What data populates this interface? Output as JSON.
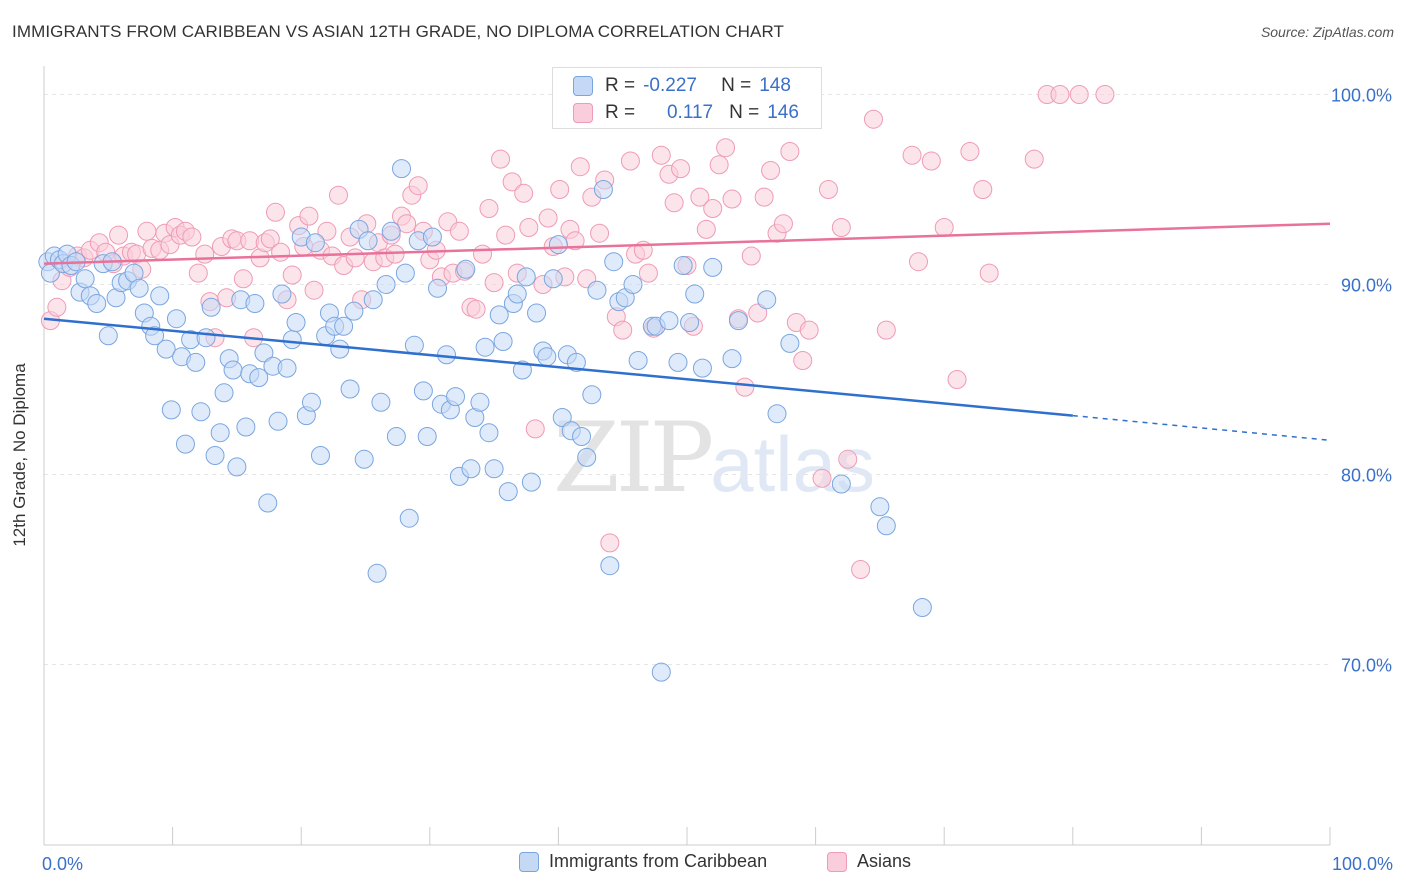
{
  "header": {
    "title": "IMMIGRANTS FROM CARIBBEAN VS ASIAN 12TH GRADE, NO DIPLOMA CORRELATION CHART",
    "source": "Source: ZipAtlas.com"
  },
  "watermark": {
    "zip": "ZIP",
    "atlas": "atlas"
  },
  "stats": {
    "caribbean": {
      "r_label": "R =",
      "r_value": "-0.227",
      "n_label": "N =",
      "n_value": "148"
    },
    "asians": {
      "r_label": "R =",
      "r_value": "0.117",
      "n_label": "N =",
      "n_value": "146"
    }
  },
  "chart_data": {
    "type": "scatter",
    "title": "IMMIGRANTS FROM CARIBBEAN VS ASIAN 12TH GRADE, NO DIPLOMA CORRELATION CHART",
    "xlabel": "",
    "ylabel": "12th Grade, No Diploma",
    "xlim": [
      0,
      100
    ],
    "ylim": [
      60.5,
      101.5
    ],
    "x_ticks": [
      0,
      100
    ],
    "x_tick_labels": [
      "0.0%",
      "100.0%"
    ],
    "y_ticks": [
      70,
      80,
      90,
      100
    ],
    "y_tick_labels": [
      "70.0%",
      "80.0%",
      "90.0%",
      "100.0%"
    ],
    "grid": true,
    "legend_position": "bottom-center",
    "colors": {
      "caribbean_fill": "#c5d9f5",
      "caribbean_stroke": "#7aa6e0",
      "caribbean_line": "#2f6fce",
      "asians_fill": "#f9cddb",
      "asians_stroke": "#ef9bb6",
      "asians_line": "#e8729a",
      "axis_text": "#3a70c8"
    },
    "series": [
      {
        "name": "Immigrants from Caribbean",
        "trend": {
          "x_start": 0,
          "y_start": 88.2,
          "x_end": 80,
          "y_end": 83.1,
          "x_dash_end": 100,
          "y_dash_end": 81.8
        },
        "points": [
          [
            0.3,
            91.2
          ],
          [
            0.5,
            90.6
          ],
          [
            0.8,
            91.5
          ],
          [
            1.2,
            91.3
          ],
          [
            1.5,
            91.1
          ],
          [
            1.8,
            91.6
          ],
          [
            2.1,
            91.0
          ],
          [
            2.5,
            91.2
          ],
          [
            2.8,
            89.6
          ],
          [
            3.2,
            90.3
          ],
          [
            3.6,
            89.4
          ],
          [
            4.1,
            89.0
          ],
          [
            4.6,
            91.1
          ],
          [
            5.0,
            87.3
          ],
          [
            5.3,
            91.2
          ],
          [
            5.6,
            89.3
          ],
          [
            6.0,
            90.1
          ],
          [
            6.5,
            90.2
          ],
          [
            7.0,
            90.6
          ],
          [
            7.4,
            89.8
          ],
          [
            7.8,
            88.5
          ],
          [
            8.3,
            87.8
          ],
          [
            8.6,
            87.3
          ],
          [
            9.0,
            89.4
          ],
          [
            9.5,
            86.6
          ],
          [
            9.9,
            83.4
          ],
          [
            10.3,
            88.2
          ],
          [
            10.7,
            86.2
          ],
          [
            11.0,
            81.6
          ],
          [
            11.4,
            87.1
          ],
          [
            11.8,
            85.9
          ],
          [
            12.2,
            83.3
          ],
          [
            12.6,
            87.2
          ],
          [
            13.0,
            88.8
          ],
          [
            13.3,
            81.0
          ],
          [
            13.7,
            82.2
          ],
          [
            14.0,
            84.3
          ],
          [
            14.4,
            86.1
          ],
          [
            14.7,
            85.5
          ],
          [
            15.0,
            80.4
          ],
          [
            15.3,
            89.2
          ],
          [
            15.7,
            82.5
          ],
          [
            16.0,
            85.3
          ],
          [
            16.4,
            89.0
          ],
          [
            16.7,
            85.1
          ],
          [
            17.1,
            86.4
          ],
          [
            17.4,
            78.5
          ],
          [
            17.8,
            85.7
          ],
          [
            18.2,
            82.8
          ],
          [
            18.5,
            89.5
          ],
          [
            18.9,
            85.6
          ],
          [
            19.3,
            87.1
          ],
          [
            19.6,
            88.0
          ],
          [
            20.0,
            92.5
          ],
          [
            20.4,
            83.1
          ],
          [
            20.8,
            83.8
          ],
          [
            21.1,
            92.2
          ],
          [
            21.5,
            81.0
          ],
          [
            21.9,
            87.3
          ],
          [
            22.2,
            88.5
          ],
          [
            22.6,
            87.8
          ],
          [
            23.0,
            86.6
          ],
          [
            23.3,
            87.8
          ],
          [
            23.8,
            84.5
          ],
          [
            24.1,
            88.6
          ],
          [
            24.5,
            92.9
          ],
          [
            24.9,
            80.8
          ],
          [
            25.2,
            92.3
          ],
          [
            25.6,
            89.2
          ],
          [
            25.9,
            74.8
          ],
          [
            26.2,
            83.8
          ],
          [
            26.6,
            90.0
          ],
          [
            27.0,
            92.8
          ],
          [
            27.4,
            82.0
          ],
          [
            27.8,
            96.1
          ],
          [
            28.1,
            90.6
          ],
          [
            28.4,
            77.7
          ],
          [
            28.8,
            86.8
          ],
          [
            29.1,
            92.3
          ],
          [
            29.5,
            84.4
          ],
          [
            29.8,
            82.0
          ],
          [
            30.2,
            92.5
          ],
          [
            30.6,
            89.8
          ],
          [
            30.9,
            83.7
          ],
          [
            31.3,
            86.3
          ],
          [
            31.6,
            83.4
          ],
          [
            32.0,
            84.1
          ],
          [
            32.3,
            79.9
          ],
          [
            32.8,
            90.8
          ],
          [
            33.2,
            80.3
          ],
          [
            33.5,
            83.0
          ],
          [
            33.9,
            83.8
          ],
          [
            34.3,
            86.7
          ],
          [
            34.6,
            82.2
          ],
          [
            35.0,
            80.3
          ],
          [
            35.4,
            88.4
          ],
          [
            35.7,
            87.0
          ],
          [
            36.1,
            79.1
          ],
          [
            36.5,
            89.0
          ],
          [
            36.8,
            89.5
          ],
          [
            37.2,
            85.5
          ],
          [
            37.5,
            90.4
          ],
          [
            37.9,
            79.6
          ],
          [
            38.3,
            88.5
          ],
          [
            38.8,
            86.5
          ],
          [
            39.1,
            86.2
          ],
          [
            39.6,
            90.3
          ],
          [
            40.0,
            92.1
          ],
          [
            40.3,
            83.0
          ],
          [
            40.7,
            86.3
          ],
          [
            41.0,
            82.3
          ],
          [
            41.4,
            85.9
          ],
          [
            41.8,
            82.0
          ],
          [
            42.2,
            80.9
          ],
          [
            42.6,
            84.2
          ],
          [
            43.0,
            89.7
          ],
          [
            43.5,
            95.0
          ],
          [
            44.0,
            75.2
          ],
          [
            44.3,
            91.2
          ],
          [
            44.7,
            89.1
          ],
          [
            45.2,
            89.3
          ],
          [
            45.8,
            90.0
          ],
          [
            46.2,
            86.0
          ],
          [
            46.8,
            100.0
          ],
          [
            47.3,
            87.8
          ],
          [
            47.6,
            87.8
          ],
          [
            48.0,
            69.6
          ],
          [
            48.6,
            88.1
          ],
          [
            49.3,
            85.9
          ],
          [
            49.7,
            91.0
          ],
          [
            50.2,
            88.0
          ],
          [
            50.6,
            89.5
          ],
          [
            51.2,
            85.6
          ],
          [
            52.0,
            90.9
          ],
          [
            53.0,
            100.0
          ],
          [
            53.5,
            86.1
          ],
          [
            54.0,
            88.1
          ],
          [
            56.2,
            89.2
          ],
          [
            57.0,
            83.2
          ],
          [
            58.0,
            86.9
          ],
          [
            62.0,
            79.5
          ],
          [
            65.0,
            78.3
          ],
          [
            65.5,
            77.3
          ],
          [
            68.3,
            73.0
          ]
        ]
      },
      {
        "name": "Asians",
        "trend": {
          "x_start": 0,
          "y_start": 91.1,
          "x_end": 100,
          "y_end": 93.2
        },
        "points": [
          [
            0.5,
            88.1
          ],
          [
            1.0,
            88.8
          ],
          [
            1.4,
            90.2
          ],
          [
            2.0,
            90.9
          ],
          [
            2.6,
            91.5
          ],
          [
            3.1,
            91.4
          ],
          [
            3.6,
            91.8
          ],
          [
            4.3,
            92.2
          ],
          [
            4.8,
            91.7
          ],
          [
            5.4,
            91.1
          ],
          [
            5.8,
            92.6
          ],
          [
            6.2,
            91.5
          ],
          [
            6.8,
            91.7
          ],
          [
            7.2,
            91.6
          ],
          [
            7.6,
            90.8
          ],
          [
            8.0,
            92.8
          ],
          [
            8.4,
            91.9
          ],
          [
            9.0,
            91.8
          ],
          [
            9.4,
            92.7
          ],
          [
            9.8,
            92.1
          ],
          [
            10.2,
            93.0
          ],
          [
            10.6,
            92.6
          ],
          [
            11.0,
            92.8
          ],
          [
            11.5,
            92.5
          ],
          [
            12.0,
            90.6
          ],
          [
            12.5,
            91.6
          ],
          [
            12.9,
            89.1
          ],
          [
            13.3,
            87.2
          ],
          [
            13.8,
            92.0
          ],
          [
            14.2,
            89.3
          ],
          [
            14.6,
            92.4
          ],
          [
            15.0,
            92.3
          ],
          [
            15.5,
            90.3
          ],
          [
            16.0,
            92.3
          ],
          [
            16.3,
            87.2
          ],
          [
            16.8,
            91.4
          ],
          [
            17.2,
            92.2
          ],
          [
            17.6,
            92.4
          ],
          [
            18.0,
            93.8
          ],
          [
            18.4,
            91.7
          ],
          [
            18.9,
            89.2
          ],
          [
            19.3,
            90.5
          ],
          [
            19.8,
            93.1
          ],
          [
            20.2,
            92.0
          ],
          [
            20.6,
            93.6
          ],
          [
            21.0,
            89.7
          ],
          [
            21.5,
            91.8
          ],
          [
            22.0,
            92.8
          ],
          [
            22.4,
            91.5
          ],
          [
            22.9,
            94.7
          ],
          [
            23.3,
            91.0
          ],
          [
            23.8,
            92.5
          ],
          [
            24.2,
            91.4
          ],
          [
            24.7,
            89.2
          ],
          [
            25.1,
            93.2
          ],
          [
            25.6,
            91.2
          ],
          [
            26.0,
            92.2
          ],
          [
            26.5,
            91.4
          ],
          [
            27.0,
            92.6
          ],
          [
            27.3,
            91.6
          ],
          [
            27.8,
            93.6
          ],
          [
            28.2,
            93.2
          ],
          [
            28.6,
            94.7
          ],
          [
            29.1,
            95.2
          ],
          [
            29.5,
            92.8
          ],
          [
            30.0,
            91.3
          ],
          [
            30.5,
            91.8
          ],
          [
            30.9,
            90.4
          ],
          [
            31.4,
            93.3
          ],
          [
            31.8,
            90.6
          ],
          [
            32.3,
            92.8
          ],
          [
            32.7,
            90.7
          ],
          [
            33.2,
            88.8
          ],
          [
            33.6,
            88.7
          ],
          [
            34.1,
            91.6
          ],
          [
            34.6,
            94.0
          ],
          [
            35.0,
            90.1
          ],
          [
            35.5,
            96.6
          ],
          [
            35.9,
            92.6
          ],
          [
            36.4,
            95.4
          ],
          [
            36.8,
            90.6
          ],
          [
            37.3,
            94.8
          ],
          [
            37.7,
            93.0
          ],
          [
            38.2,
            82.4
          ],
          [
            38.8,
            90.0
          ],
          [
            39.2,
            93.5
          ],
          [
            39.6,
            92.0
          ],
          [
            40.1,
            95.0
          ],
          [
            40.5,
            90.4
          ],
          [
            40.9,
            92.9
          ],
          [
            41.3,
            92.3
          ],
          [
            41.7,
            96.2
          ],
          [
            42.2,
            90.3
          ],
          [
            42.6,
            94.6
          ],
          [
            43.2,
            92.7
          ],
          [
            43.6,
            95.5
          ],
          [
            44.0,
            76.4
          ],
          [
            44.5,
            88.3
          ],
          [
            45.0,
            87.6
          ],
          [
            45.6,
            96.5
          ],
          [
            46.0,
            91.6
          ],
          [
            46.6,
            91.8
          ],
          [
            47.0,
            90.6
          ],
          [
            47.4,
            87.7
          ],
          [
            48.0,
            96.8
          ],
          [
            48.6,
            95.8
          ],
          [
            49.0,
            94.3
          ],
          [
            49.5,
            96.1
          ],
          [
            50.0,
            91.0
          ],
          [
            50.5,
            87.8
          ],
          [
            51.0,
            94.6
          ],
          [
            51.5,
            92.9
          ],
          [
            52.0,
            94.0
          ],
          [
            52.5,
            96.3
          ],
          [
            53.0,
            97.2
          ],
          [
            53.5,
            94.5
          ],
          [
            54.0,
            88.2
          ],
          [
            54.5,
            84.6
          ],
          [
            55.0,
            91.5
          ],
          [
            55.5,
            88.5
          ],
          [
            56.0,
            94.6
          ],
          [
            56.5,
            96.0
          ],
          [
            57.0,
            92.7
          ],
          [
            57.5,
            93.2
          ],
          [
            58.0,
            97.0
          ],
          [
            58.5,
            88.0
          ],
          [
            59.0,
            86.0
          ],
          [
            59.5,
            87.6
          ],
          [
            60.5,
            79.8
          ],
          [
            61.0,
            95.0
          ],
          [
            62.0,
            93.0
          ],
          [
            62.5,
            80.8
          ],
          [
            63.5,
            75.0
          ],
          [
            64.5,
            98.7
          ],
          [
            65.5,
            87.6
          ],
          [
            67.5,
            96.8
          ],
          [
            68.0,
            91.2
          ],
          [
            69.0,
            96.5
          ],
          [
            70.0,
            93.0
          ],
          [
            71.0,
            85.0
          ],
          [
            72.0,
            97.0
          ],
          [
            73.0,
            95.0
          ],
          [
            73.5,
            90.6
          ],
          [
            77.0,
            96.6
          ],
          [
            78.0,
            100.0
          ],
          [
            79.0,
            100.0
          ],
          [
            80.5,
            100.0
          ],
          [
            82.5,
            100.0
          ]
        ]
      }
    ]
  },
  "legend": {
    "items": [
      {
        "label": "Immigrants from Caribbean"
      },
      {
        "label": "Asians"
      }
    ]
  }
}
